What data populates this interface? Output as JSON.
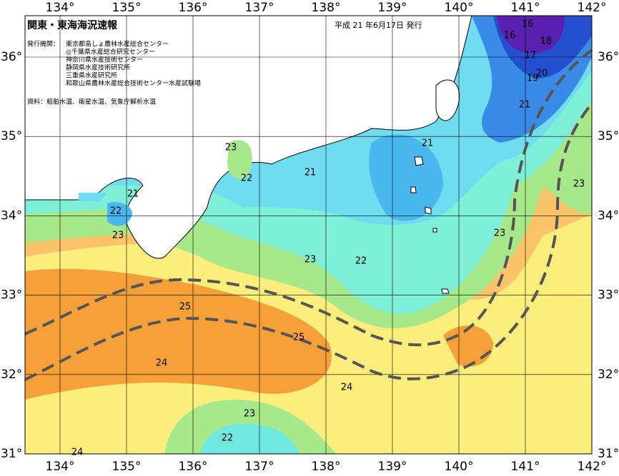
{
  "title": "関東・東海海況速報",
  "issue_date": "平成 21 年6月17日 発行",
  "publisher": {
    "label": "発行機関：",
    "organizations": [
      "東京都島しょ農林水産総合センター",
      "◎千葉県水産総合研究センター",
      "神奈川県水産技術センター",
      "静岡県水産技術研究所",
      "三重県水産研究所",
      "和歌山県農林水産総合技術センター水産試験場"
    ]
  },
  "source": "資料：船舶水温、衛星水温、気象庁解析水温",
  "longitude_labels": [
    "134°",
    "135°",
    "136°",
    "137°",
    "138°",
    "139°",
    "140°",
    "141°",
    "142°"
  ],
  "latitude_labels": [
    "36°",
    "35°",
    "34°",
    "33°",
    "32°",
    "31°"
  ],
  "contour_labels": [
    "16",
    "16",
    "18",
    "17",
    "20",
    "19",
    "21",
    "21",
    "21",
    "23",
    "22",
    "21",
    "22",
    "23",
    "23",
    "23",
    "23",
    "22",
    "25",
    "25",
    "24",
    "24",
    "23",
    "22",
    "24"
  ]
}
